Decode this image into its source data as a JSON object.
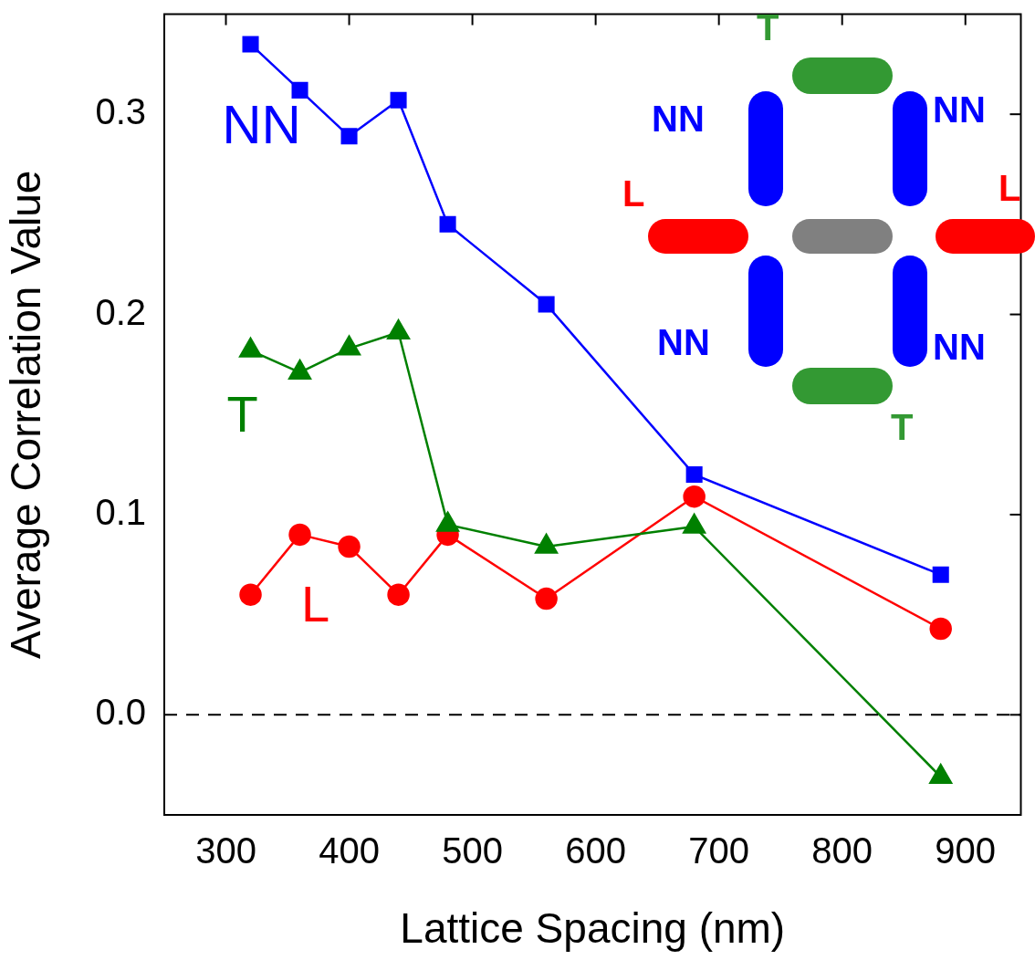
{
  "chart_data": {
    "type": "line",
    "xlabel": "Lattice Spacing (nm)",
    "ylabel": "Average Correlation Value",
    "xlim": [
      250,
      945
    ],
    "xticks": [
      300,
      400,
      500,
      600,
      700,
      800,
      900
    ],
    "ylim": [
      -0.05,
      0.35
    ],
    "yticks": [
      {
        "value": 0,
        "label": "0.0"
      },
      {
        "value": 0.1,
        "label": "0.1"
      },
      {
        "value": 0.2,
        "label": "0.2"
      },
      {
        "value": 0.3,
        "label": "0.3"
      }
    ],
    "x": [
      320,
      360,
      400,
      440,
      480,
      560,
      680,
      880
    ],
    "series": [
      {
        "name": "NN",
        "color": "#0000ff",
        "marker": "square",
        "values": [
          0.335,
          0.312,
          0.289,
          0.307,
          0.245,
          0.205,
          0.12,
          0.07
        ]
      },
      {
        "name": "T",
        "color": "#008000",
        "marker": "triangle",
        "values": [
          0.182,
          0.171,
          0.183,
          0.191,
          0.095,
          0.084,
          0.094,
          -0.031
        ]
      },
      {
        "name": "L",
        "color": "#ff0000",
        "marker": "circle",
        "values": [
          0.06,
          0.09,
          0.084,
          0.06,
          0.09,
          0.058,
          0.109,
          0.043
        ]
      }
    ],
    "ref_lines": [
      {
        "axis": "y",
        "value": 0,
        "color": "#000000",
        "line_style": "dashed"
      }
    ],
    "grid": false,
    "legend": false,
    "line_style": "solid"
  }
}
